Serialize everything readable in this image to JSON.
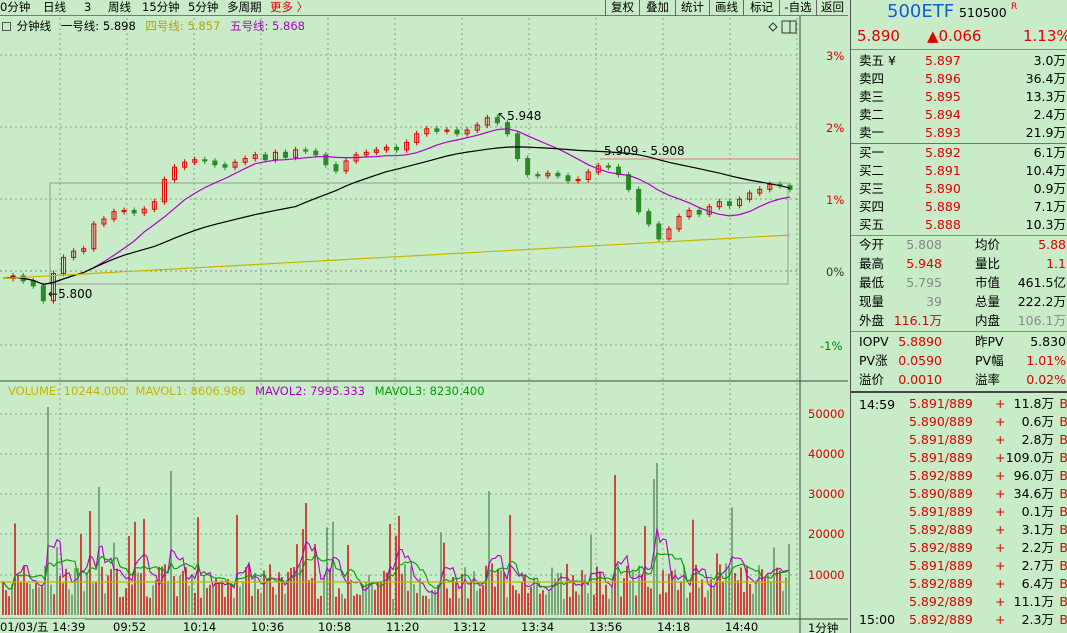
{
  "toolbar": {
    "items": [
      "0分钟",
      "日线",
      "3",
      "周线",
      "15分钟",
      "5分钟",
      "多周期",
      "更多 〉"
    ],
    "buttons": [
      "复权",
      "叠加",
      "统计",
      "画线",
      "标记",
      "-自选",
      "返回"
    ]
  },
  "legend": {
    "title": "分钟线",
    "line1": "一号线: 5.898",
    "line4": "四号线: 5.857",
    "line5": "五号线: 5.868",
    "vol": "VOLUME: 10244.000",
    "mavol1": "MAVOL1: 8606.986",
    "mavol2": "MAVOL2: 7995.333",
    "mavol3": "MAVOL3: 8230.400"
  },
  "annotations": {
    "high": "5.948",
    "low": "5.800",
    "range": "5.909 - 5.908"
  },
  "axis": {
    "pct": [
      "3%",
      "2%",
      "1%",
      "0%",
      "-1%"
    ],
    "vol": [
      "50000",
      "40000",
      "30000",
      "20000",
      "10000"
    ],
    "time": [
      "01/03/五 14:39",
      "09:52",
      "10:14",
      "10:36",
      "10:58",
      "11:20",
      "13:12",
      "13:34",
      "13:56",
      "14:18",
      "14:40"
    ],
    "period": "1分钟"
  },
  "colors": {
    "bg": "#c8ecc8",
    "up": "#e00000",
    "down": "#2a8a2a",
    "line1": "#000000",
    "line4": "#c8b400",
    "line5": "#b000c8",
    "mavol3": "#00b000"
  },
  "chart_data": {
    "type": "line",
    "price_series": [
      5.818,
      5.82,
      5.816,
      5.812,
      5.8,
      5.822,
      5.835,
      5.84,
      5.842,
      5.862,
      5.866,
      5.872,
      5.873,
      5.871,
      5.874,
      5.88,
      5.898,
      5.908,
      5.912,
      5.914,
      5.913,
      5.91,
      5.908,
      5.912,
      5.915,
      5.918,
      5.914,
      5.92,
      5.916,
      5.922,
      5.921,
      5.918,
      5.91,
      5.905,
      5.913,
      5.918,
      5.92,
      5.922,
      5.924,
      5.922,
      5.928,
      5.935,
      5.939,
      5.937,
      5.938,
      5.935,
      5.938,
      5.942,
      5.948,
      5.944,
      5.935,
      5.915,
      5.902,
      5.901,
      5.903,
      5.901,
      5.897,
      5.898,
      5.904,
      5.909,
      5.908,
      5.902,
      5.89,
      5.872,
      5.862,
      5.85,
      5.858,
      5.868,
      5.873,
      5.87,
      5.876,
      5.88,
      5.877,
      5.882,
      5.887,
      5.89,
      5.894,
      5.893,
      5.89
    ],
    "yrange_pct": [
      -1.5,
      3.5
    ],
    "prev_close": 5.824
  },
  "right": {
    "code_name": "500ETF",
    "code": "510500",
    "r_mark": "R",
    "price": "5.890",
    "change": "▲0.066",
    "pct": "1.13%",
    "asks": [
      {
        "label": "卖五 ¥",
        "price": "5.897",
        "vol": "3.0万"
      },
      {
        "label": "卖四",
        "price": "5.896",
        "vol": "36.4万"
      },
      {
        "label": "卖三",
        "price": "5.895",
        "vol": "13.3万"
      },
      {
        "label": "卖二",
        "price": "5.894",
        "vol": "2.4万"
      },
      {
        "label": "卖一",
        "price": "5.893",
        "vol": "21.9万"
      }
    ],
    "bids": [
      {
        "label": "买一",
        "price": "5.892",
        "vol": "6.1万"
      },
      {
        "label": "买二",
        "price": "5.891",
        "vol": "10.4万"
      },
      {
        "label": "买三",
        "price": "5.890",
        "vol": "0.9万"
      },
      {
        "label": "买四",
        "price": "5.889",
        "vol": "7.1万"
      },
      {
        "label": "买五",
        "price": "5.888",
        "vol": "10.3万"
      }
    ],
    "stats": [
      {
        "k1": "今开",
        "v1": "5.808",
        "k2": "均价",
        "v2": "5.88"
      },
      {
        "k1": "最高",
        "v1": "5.948",
        "k2": "量比",
        "v2": "1.1"
      },
      {
        "k1": "最低",
        "v1": "5.795",
        "k2": "市值",
        "v2": "461.5亿"
      },
      {
        "k1": "现量",
        "v1": "39",
        "k2": "总量",
        "v2": "222.2万"
      },
      {
        "k1": "外盘",
        "v1": "116.1万",
        "k2": "内盘",
        "v2": "106.1万"
      }
    ],
    "iopv": [
      {
        "k1": "IOPV",
        "v1": "5.8890",
        "k2": "昨PV",
        "v2": "5.830"
      },
      {
        "k1": "PV涨",
        "v1": "0.0590",
        "k2": "PV幅",
        "v2": "1.01%"
      },
      {
        "k1": "溢价",
        "v1": "0.0010",
        "k2": "溢率",
        "v2": "0.02%"
      }
    ],
    "ticks_time1": "14:59",
    "ticks_time2": "15:00",
    "ticks": [
      {
        "p": "5.891/889",
        "s": "+",
        "v": "11.8万"
      },
      {
        "p": "5.890/889",
        "s": "+",
        "v": "0.6万"
      },
      {
        "p": "5.891/889",
        "s": "+",
        "v": "2.8万"
      },
      {
        "p": "5.891/889",
        "s": "+",
        "v": "109.0万"
      },
      {
        "p": "5.892/889",
        "s": "+",
        "v": "96.0万"
      },
      {
        "p": "5.890/889",
        "s": "+",
        "v": "34.6万"
      },
      {
        "p": "5.891/889",
        "s": "+",
        "v": "0.1万"
      },
      {
        "p": "5.892/889",
        "s": "+",
        "v": "3.1万"
      },
      {
        "p": "5.892/889",
        "s": "+",
        "v": "2.2万"
      },
      {
        "p": "5.891/889",
        "s": "+",
        "v": "2.7万"
      },
      {
        "p": "5.892/889",
        "s": "+",
        "v": "6.4万"
      },
      {
        "p": "5.892/889",
        "s": "+",
        "v": "11.1万"
      },
      {
        "p": "5.892/889",
        "s": "+",
        "v": "2.3万"
      }
    ]
  }
}
